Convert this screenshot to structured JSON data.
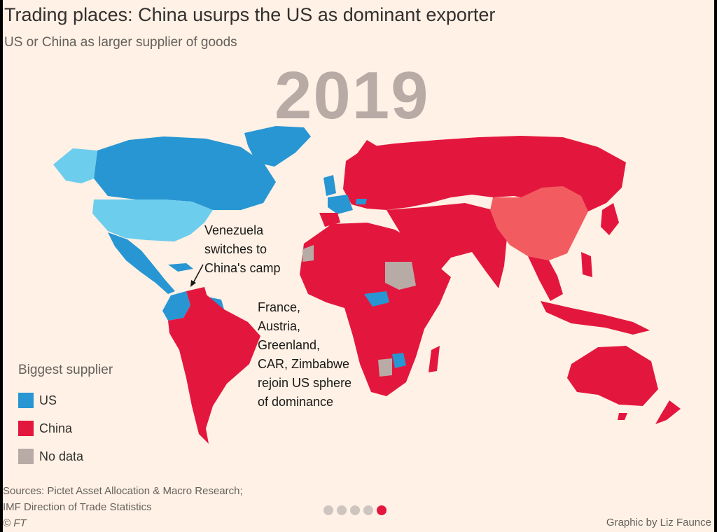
{
  "header": {
    "title": "Trading places: China usurps the US as dominant exporter",
    "subtitle": "US or China as larger supplier of goods"
  },
  "year": "2019",
  "colors": {
    "us": "#2796d3",
    "us_light": "#6dcdec",
    "china": "#e3173e",
    "china_light": "#f25c60",
    "no_data": "#b8aba6",
    "background": "#fff1e5"
  },
  "annotations": {
    "venezuela": [
      "Venezuela",
      "switches to",
      "China's camp"
    ],
    "rejoin": [
      "France,",
      "Austria,",
      "Greenland,",
      "CAR, Zimbabwe",
      "rejoin US sphere",
      "of dominance"
    ]
  },
  "legend": {
    "title": "Biggest supplier",
    "items": [
      {
        "label": "US",
        "color": "#2796d3"
      },
      {
        "label": "China",
        "color": "#e3173e"
      },
      {
        "label": "No data",
        "color": "#b8aba6"
      }
    ]
  },
  "footer": {
    "sources": [
      "Sources: Pictet Asset Allocation & Macro Research;",
      "IMF Direction of Trade Statistics",
      "© FT"
    ],
    "credit": "Graphic by Liz Faunce",
    "pagination": {
      "total": 5,
      "active": 5
    }
  }
}
